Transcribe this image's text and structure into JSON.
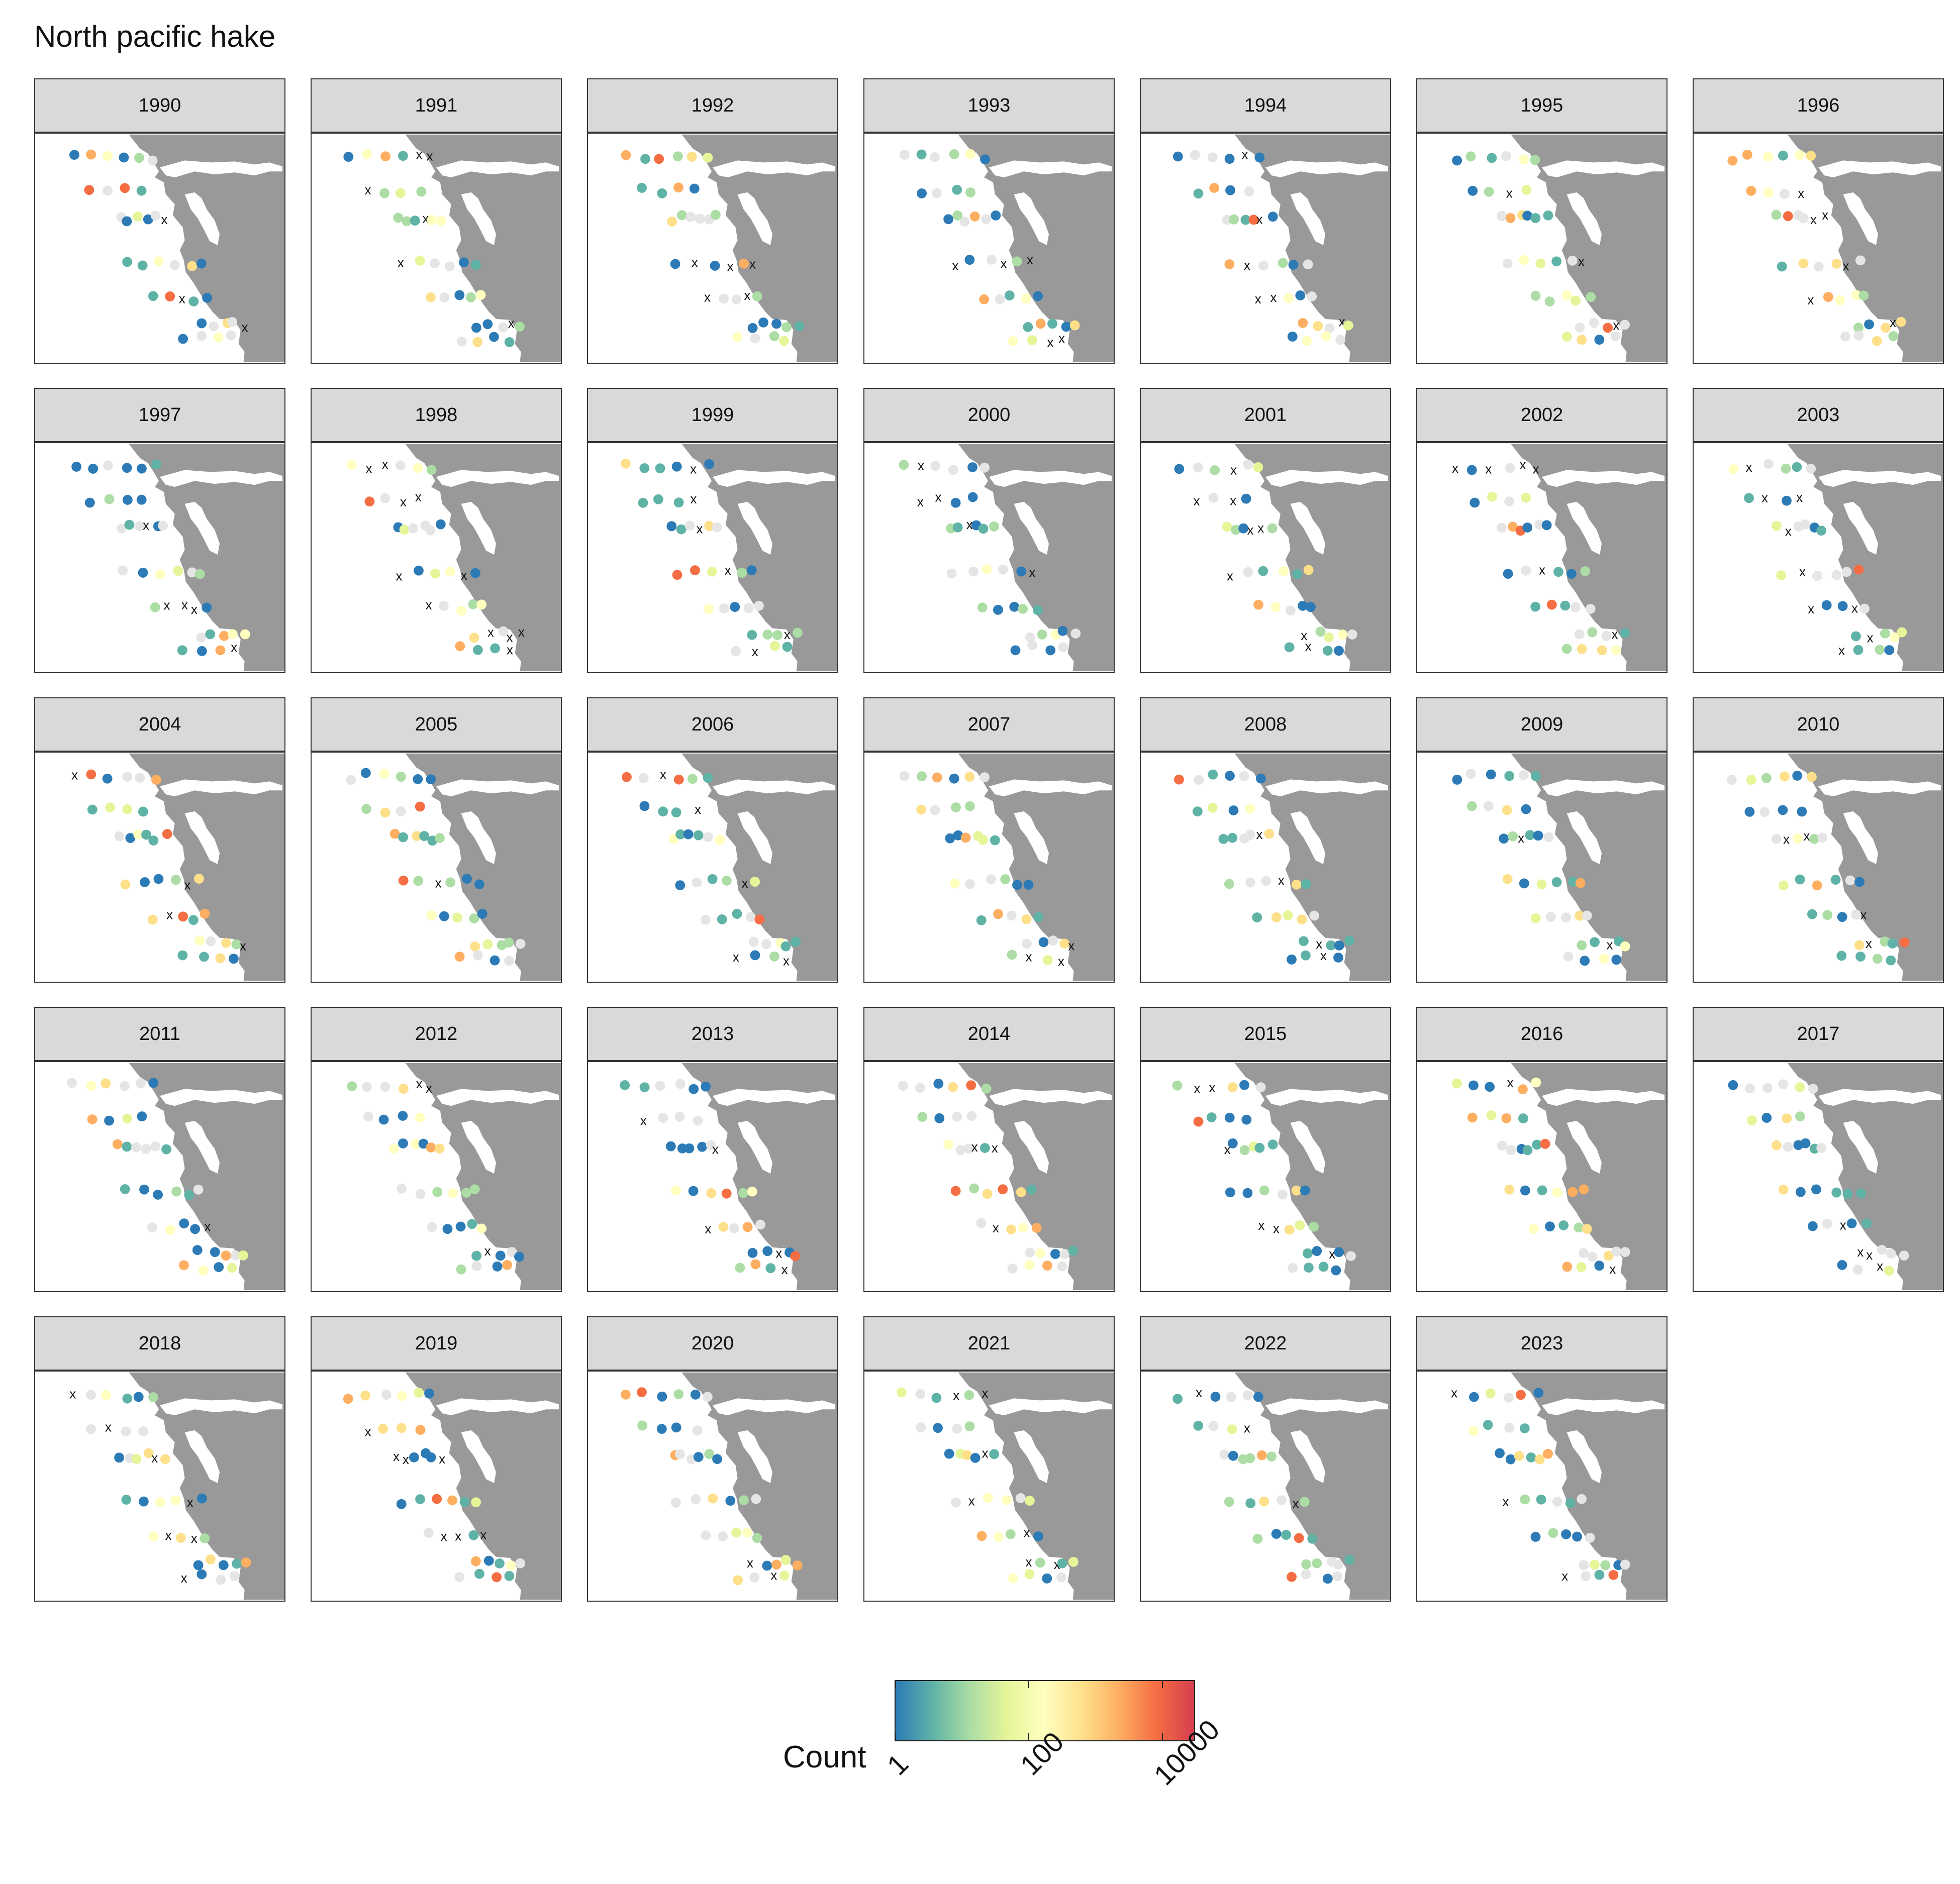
{
  "chart_data": {
    "type": "scatter",
    "title": "North pacific hake",
    "facet_years": [
      "1990",
      "1991",
      "1992",
      "1993",
      "1994",
      "1995",
      "1996",
      "1997",
      "1998",
      "1999",
      "2000",
      "2001",
      "2002",
      "2003",
      "2004",
      "2005",
      "2006",
      "2007",
      "2008",
      "2009",
      "2010",
      "2011",
      "2012",
      "2013",
      "2014",
      "2015",
      "2016",
      "2017",
      "2018",
      "2019",
      "2020",
      "2021",
      "2022",
      "2023"
    ],
    "legend": {
      "title": "Count",
      "scale": "log10",
      "range": [
        1,
        30000
      ],
      "ticks": [
        "1",
        "100",
        "10000"
      ],
      "tick_values": [
        1,
        100,
        10000
      ],
      "colors": [
        "#2c7bb6",
        "#5fb3a6",
        "#abdda4",
        "#e6f598",
        "#ffffbf",
        "#fee08b",
        "#fdae61",
        "#f46d43",
        "#d53e4f"
      ]
    },
    "zero_marker": "x",
    "missing_color": "#e5e5e5",
    "land_color": "#999999"
  }
}
